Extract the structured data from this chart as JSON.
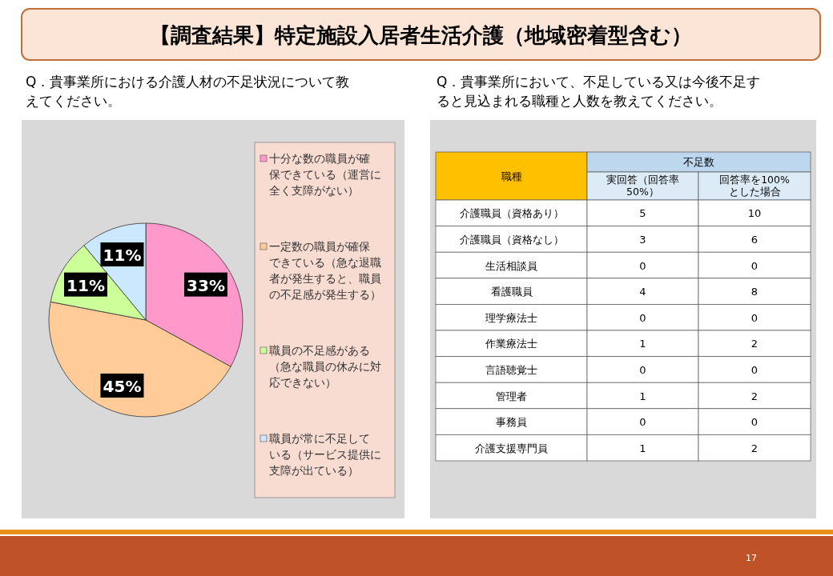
{
  "chart_data": [
    {
      "type": "pie",
      "title": "Q．貴事業所における介護人材の不足状況について教えてください。",
      "categories": [
        "十分な数の職員が確保できている（運営に全く支障がない）",
        "一定数の職員が確保できている（急な退職者が発生すると、職員の不足感が発生する）",
        "職員の不足感がある（急な職員の休みに対応できない）",
        "職員が常に不足している（サービス提供に支障が出ている）"
      ],
      "values": [
        33,
        45,
        11,
        11
      ],
      "colors": [
        "#ff99cc",
        "#ffcc99",
        "#ccff99",
        "#cce8ff"
      ],
      "value_labels": [
        "33%",
        "45%",
        "11%",
        "11%"
      ],
      "legend": "right",
      "annotations": [
        "【調査結果】特定施設入居者生活介護（地域密着型含む）",
        "17"
      ]
    },
    {
      "type": "other",
      "title": "Q．貴事業所において、不足している又は今後不足すると見込まれる職種と人数を教えてください。",
      "ylabel": "職種",
      "legend_title": "不足数",
      "categories": [
        "介護職員（資格あり）",
        "介護職員（資格なし）",
        "生活相談員",
        "看護職員",
        "理学療法士",
        "作業療法士",
        "言語聴覚士",
        "管理者",
        "事務員",
        "介護支援専門員"
      ],
      "series": [
        {
          "name": "実回答（回答率50%）",
          "values": [
            5,
            3,
            0,
            4,
            0,
            1,
            0,
            1,
            0,
            1
          ]
        },
        {
          "name": "回答率を100%とした場合",
          "values": [
            10,
            6,
            0,
            8,
            0,
            2,
            0,
            2,
            0,
            2
          ]
        }
      ],
      "data_labels": true
    }
  ]
}
